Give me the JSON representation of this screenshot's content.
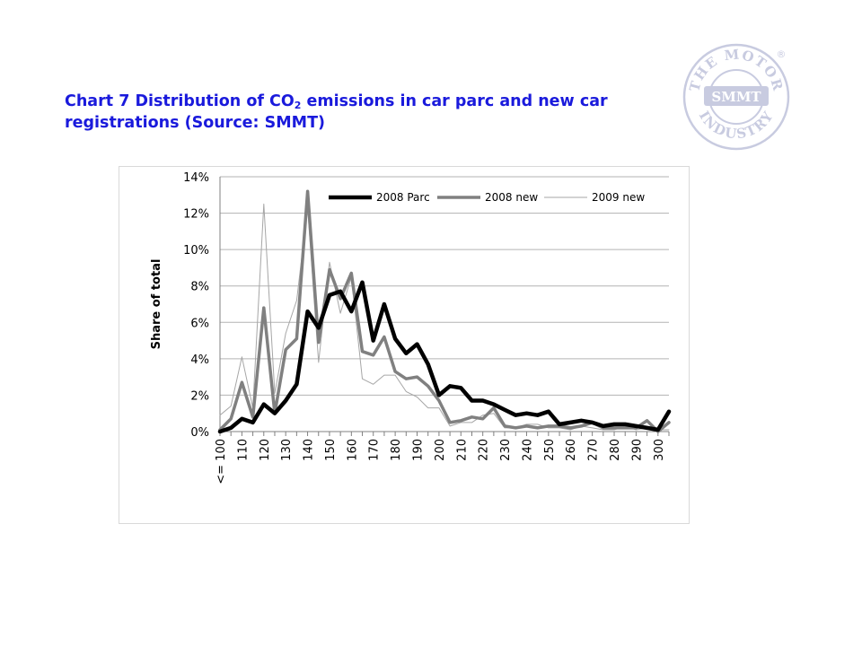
{
  "title": {
    "part1": "Chart 7 Distribution of CO",
    "subscript": "2",
    "part2": " emissions in car parc and new car registrations (Source: SMMT)"
  },
  "logo": {
    "top_text": "THE MOTOR",
    "bottom_text": "INDUSTRY",
    "center_text": "SMMT",
    "registered": "®",
    "color": "#c8cbe0"
  },
  "chart_data": {
    "type": "line",
    "title": "",
    "xlabel": "",
    "ylabel": "Share of total",
    "ylim": [
      0,
      14
    ],
    "y_ticks": [
      0,
      2,
      4,
      6,
      8,
      10,
      12,
      14
    ],
    "y_tick_suffix": "%",
    "grid": true,
    "legend_position": "top",
    "x_tick_labels": [
      "<= 100",
      "110",
      "120",
      "130",
      "140",
      "150",
      "160",
      "170",
      "180",
      "190",
      "200",
      "210",
      "220",
      "230",
      "240",
      "250",
      "260",
      "270",
      "280",
      "290",
      "300"
    ],
    "x": [
      100,
      105,
      110,
      115,
      120,
      125,
      130,
      135,
      140,
      145,
      150,
      155,
      160,
      165,
      170,
      175,
      180,
      185,
      190,
      195,
      200,
      205,
      210,
      215,
      220,
      225,
      230,
      235,
      240,
      245,
      250,
      255,
      260,
      265,
      270,
      275,
      280,
      285,
      290,
      295,
      300,
      305
    ],
    "series": [
      {
        "name": "2008 Parc",
        "color": "#000000",
        "values": [
          0.0,
          0.2,
          0.7,
          0.5,
          1.5,
          1.0,
          1.7,
          2.6,
          6.6,
          5.7,
          7.5,
          7.7,
          6.6,
          8.2,
          5.0,
          7.0,
          5.1,
          4.3,
          4.8,
          3.7,
          2.0,
          2.5,
          2.4,
          1.7,
          1.7,
          1.5,
          1.2,
          0.9,
          1.0,
          0.9,
          1.1,
          0.4,
          0.5,
          0.6,
          0.5,
          0.3,
          0.4,
          0.4,
          0.3,
          0.2,
          0.1,
          1.1
        ]
      },
      {
        "name": "2008 new",
        "color": "#808080",
        "values": [
          0.1,
          0.7,
          2.7,
          0.8,
          6.8,
          1.0,
          4.5,
          5.1,
          13.2,
          4.9,
          8.9,
          7.3,
          8.7,
          4.4,
          4.2,
          5.2,
          3.3,
          2.9,
          3.0,
          2.5,
          1.7,
          0.5,
          0.6,
          0.8,
          0.7,
          1.3,
          0.3,
          0.2,
          0.3,
          0.2,
          0.3,
          0.3,
          0.2,
          0.3,
          0.5,
          0.2,
          0.2,
          0.2,
          0.2,
          0.6,
          0.0,
          0.5
        ]
      },
      {
        "name": "2009 new",
        "color": "#a6a6a6",
        "values": [
          0.9,
          1.4,
          4.1,
          1.3,
          12.5,
          2.1,
          5.4,
          7.2,
          12.3,
          3.8,
          9.3,
          6.5,
          8.5,
          2.9,
          2.6,
          3.1,
          3.1,
          2.2,
          1.9,
          1.3,
          1.3,
          0.3,
          0.5,
          0.5,
          0.9,
          1.0,
          0.2,
          0.2,
          0.4,
          0.4,
          0.2,
          0.2,
          0.1,
          0.3,
          0.2,
          0.1,
          0.1,
          0.3,
          0.1,
          0.2,
          0.1,
          0.1
        ]
      }
    ]
  }
}
